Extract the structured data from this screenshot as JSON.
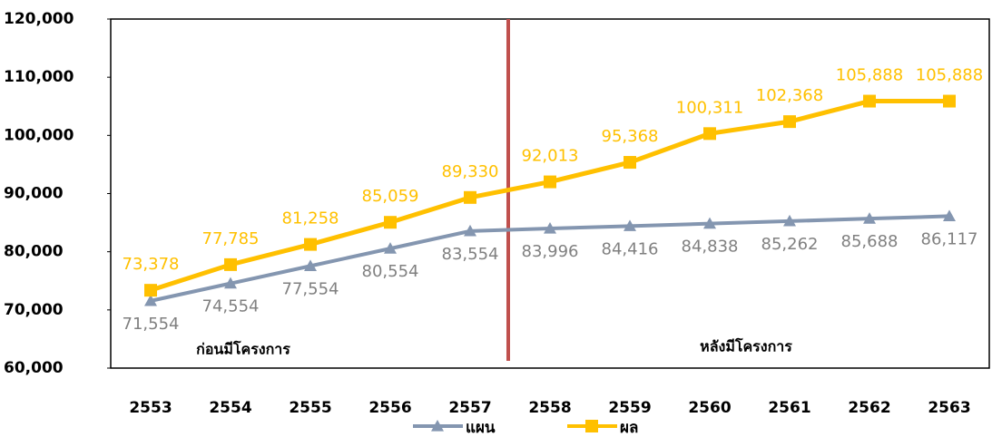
{
  "chart_data": {
    "type": "line",
    "categories": [
      "2553",
      "2554",
      "2555",
      "2556",
      "2557",
      "2558",
      "2559",
      "2560",
      "2561",
      "2562",
      "2563"
    ],
    "series": [
      {
        "name": "แผน",
        "color": "#8496b0",
        "marker": "triangle",
        "values": [
          71554,
          74554,
          77554,
          80554,
          83554,
          83996,
          84416,
          84838,
          85262,
          85688,
          86117
        ],
        "value_labels": [
          "71,554",
          "74,554",
          "77,554",
          "80,554",
          "83,554",
          "83,996",
          "84,416",
          "84,838",
          "85,262",
          "85,688",
          "86,117"
        ]
      },
      {
        "name": "ผล",
        "color": "#ffc000",
        "marker": "square",
        "values": [
          73378,
          77785,
          81258,
          85059,
          89330,
          92013,
          95368,
          100311,
          102368,
          105888,
          105888
        ],
        "value_labels": [
          "73,378",
          "77,785",
          "81,258",
          "85,059",
          "89,330",
          "92,013",
          "95,368",
          "100,311",
          "102,368",
          "105,888",
          "105,888"
        ]
      }
    ],
    "annotations": [
      "ก่อนมีโครงการ",
      "หลังมีโครงการ"
    ],
    "ylim": [
      60000,
      120000
    ],
    "yticks": [
      {
        "value": 60000,
        "label": "60,000"
      },
      {
        "value": 70000,
        "label": "70,000"
      },
      {
        "value": 80000,
        "label": "80,000"
      },
      {
        "value": 90000,
        "label": "90,000"
      },
      {
        "value": 100000,
        "label": "100,000"
      },
      {
        "value": 110000,
        "label": "110,000"
      },
      {
        "value": 120000,
        "label": "120,000"
      }
    ],
    "grid": false,
    "legend": "bottom"
  }
}
